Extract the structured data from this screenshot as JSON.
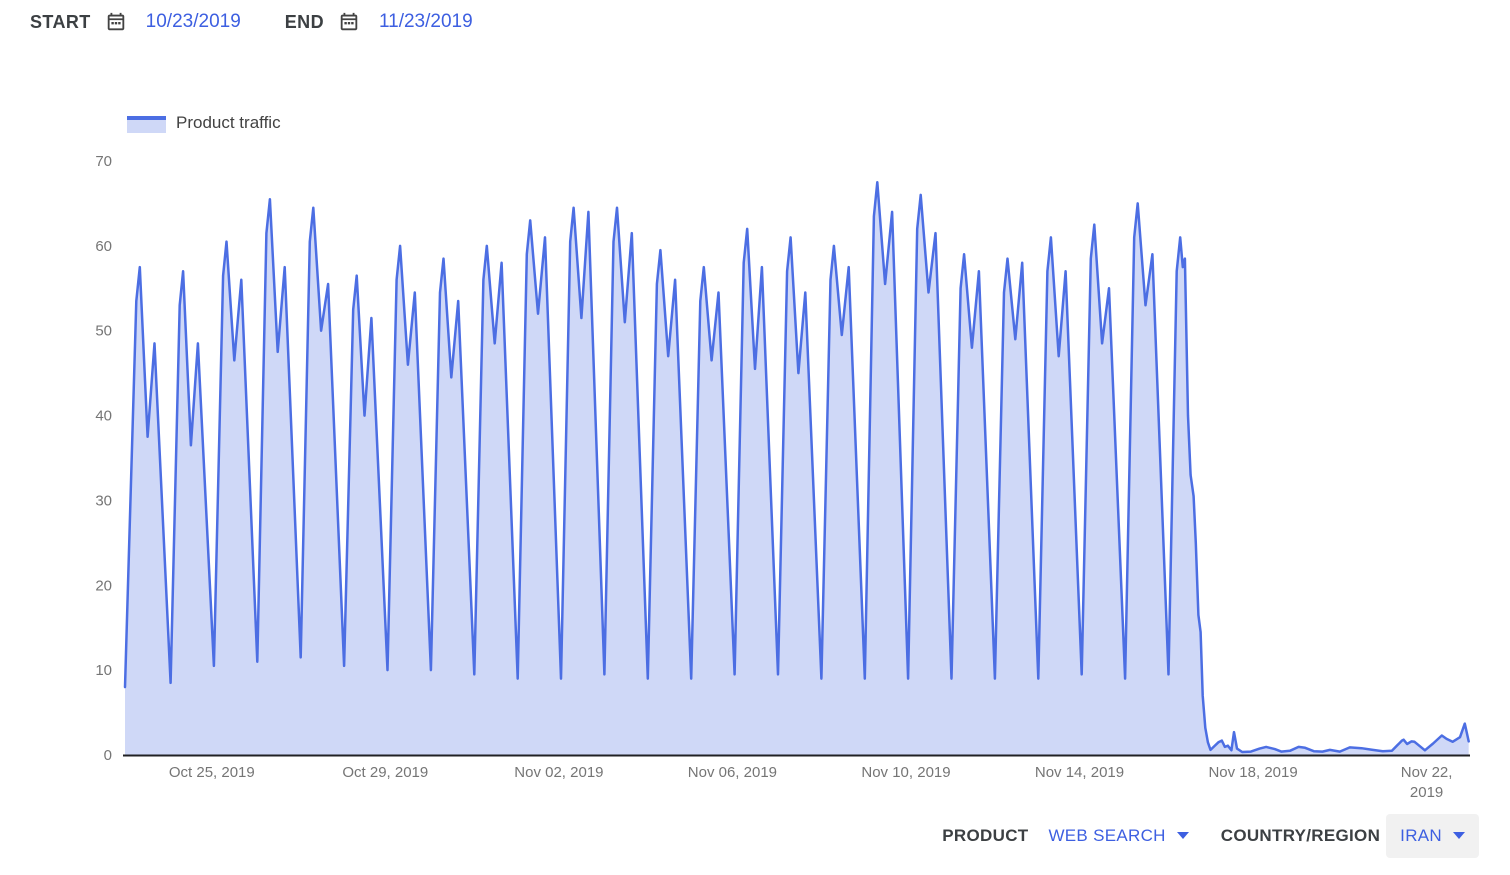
{
  "header": {
    "start_label": "START",
    "start_date": "10/23/2019",
    "end_label": "END",
    "end_date": "11/23/2019"
  },
  "legend": {
    "label": "Product traffic"
  },
  "footer": {
    "product_label": "PRODUCT",
    "product_value": "WEB SEARCH",
    "country_label": "COUNTRY/REGION",
    "country_value": "IRAN"
  },
  "colors": {
    "link": "#3d5fe1",
    "line": "#4c6ee3",
    "fill": "rgba(76,110,227,0.27)",
    "label_dark": "#3c4043",
    "label_gray": "#757575",
    "axis": "#202124",
    "icon_gray": "#424242",
    "select_bg": "#f1f1f1"
  },
  "chart_data": {
    "type": "area",
    "series_name": "Product traffic",
    "title": "",
    "xlabel": "",
    "ylabel": "",
    "x_start": "Oct 23, 2019",
    "x_end": "Nov 23, 2019",
    "x_span_days": 31,
    "ylim": [
      0,
      70
    ],
    "grid": false,
    "legend_position": "top-left",
    "yticks": [
      0,
      10,
      20,
      30,
      40,
      50,
      60,
      70
    ],
    "xticks": [
      {
        "day": 2,
        "label": "Oct 25, 2019"
      },
      {
        "day": 6,
        "label": "Oct 29, 2019"
      },
      {
        "day": 10,
        "label": "Nov 02, 2019"
      },
      {
        "day": 14,
        "label": "Nov 06, 2019"
      },
      {
        "day": 18,
        "label": "Nov 10, 2019"
      },
      {
        "day": 22,
        "label": "Nov 14, 2019"
      },
      {
        "day": 26,
        "label": "Nov 18, 2019"
      },
      {
        "day": 30,
        "label": "Nov 22, 2019",
        "wrap": true
      }
    ],
    "profile": {
      "low": 0.05,
      "shoulder": 0.26,
      "shoulder_drop": 4,
      "peak1": 0.34,
      "dip": 0.52,
      "peak2": 0.68
    },
    "daily": [
      {
        "date": "Oct 23",
        "low": 8,
        "peak1": 57.5,
        "dip": 37.5,
        "peak2": 48.5
      },
      {
        "date": "Oct 24",
        "low": 8.5,
        "peak1": 57,
        "dip": 36.5,
        "peak2": 48.5
      },
      {
        "date": "Oct 25",
        "low": 10.5,
        "peak1": 60.5,
        "dip": 46.5,
        "peak2": 56
      },
      {
        "date": "Oct 26",
        "low": 11,
        "peak1": 65.5,
        "dip": 47.5,
        "peak2": 57.5
      },
      {
        "date": "Oct 27",
        "low": 11.5,
        "peak1": 64.5,
        "dip": 50,
        "peak2": 55.5
      },
      {
        "date": "Oct 28",
        "low": 10.5,
        "peak1": 56.5,
        "dip": 40,
        "peak2": 51.5
      },
      {
        "date": "Oct 29",
        "low": 10,
        "peak1": 60,
        "dip": 46,
        "peak2": 54.5
      },
      {
        "date": "Oct 30",
        "low": 10,
        "peak1": 58.5,
        "dip": 44.5,
        "peak2": 53.5
      },
      {
        "date": "Oct 31",
        "low": 9.5,
        "peak1": 60,
        "dip": 48.5,
        "peak2": 58
      },
      {
        "date": "Nov 01",
        "low": 9,
        "peak1": 63,
        "dip": 52,
        "peak2": 61
      },
      {
        "date": "Nov 02",
        "low": 9,
        "peak1": 64.5,
        "dip": 51.5,
        "peak2": 64
      },
      {
        "date": "Nov 03",
        "low": 9.5,
        "peak1": 64.5,
        "dip": 51,
        "peak2": 61.5
      },
      {
        "date": "Nov 04",
        "low": 9,
        "peak1": 59.5,
        "dip": 47,
        "peak2": 56
      },
      {
        "date": "Nov 05",
        "low": 9,
        "peak1": 57.5,
        "dip": 46.5,
        "peak2": 54.5
      },
      {
        "date": "Nov 06",
        "low": 9.5,
        "peak1": 62,
        "dip": 45.5,
        "peak2": 57.5
      },
      {
        "date": "Nov 07",
        "low": 9.5,
        "peak1": 61,
        "dip": 45,
        "peak2": 54.5
      },
      {
        "date": "Nov 08",
        "low": 9,
        "peak1": 60,
        "dip": 49.5,
        "peak2": 57.5
      },
      {
        "date": "Nov 09",
        "low": 9,
        "peak1": 67.5,
        "dip": 55.5,
        "peak2": 64
      },
      {
        "date": "Nov 10",
        "low": 9,
        "peak1": 66,
        "dip": 54.5,
        "peak2": 61.5
      },
      {
        "date": "Nov 11",
        "low": 9,
        "peak1": 59,
        "dip": 48,
        "peak2": 57
      },
      {
        "date": "Nov 12",
        "low": 9,
        "peak1": 58.5,
        "dip": 49,
        "peak2": 58
      },
      {
        "date": "Nov 13",
        "low": 9,
        "peak1": 61,
        "dip": 47,
        "peak2": 57
      },
      {
        "date": "Nov 14",
        "low": 9.5,
        "peak1": 62.5,
        "dip": 48.5,
        "peak2": 55
      },
      {
        "date": "Nov 15",
        "low": 9,
        "peak1": 65,
        "dip": 53,
        "peak2": 59
      }
    ],
    "nov16_points": [
      [
        24.05,
        9.5
      ],
      [
        24.24,
        57
      ],
      [
        24.32,
        61
      ],
      [
        24.38,
        57.5
      ],
      [
        24.43,
        58.5
      ],
      [
        24.5,
        40
      ],
      [
        24.56,
        33
      ],
      [
        24.63,
        30.5
      ],
      [
        24.68,
        25
      ],
      [
        24.74,
        16.5
      ],
      [
        24.79,
        14.5
      ],
      [
        24.84,
        7
      ],
      [
        24.9,
        3.2
      ],
      [
        24.96,
        1.5
      ]
    ],
    "tail_points": [
      [
        25.02,
        0.6
      ],
      [
        25.1,
        1.0
      ],
      [
        25.2,
        1.5
      ],
      [
        25.28,
        1.7
      ],
      [
        25.35,
        0.95
      ],
      [
        25.42,
        1.1
      ],
      [
        25.5,
        0.55
      ],
      [
        25.56,
        2.7
      ],
      [
        25.63,
        0.75
      ],
      [
        25.75,
        0.35
      ],
      [
        25.95,
        0.4
      ],
      [
        26.15,
        0.75
      ],
      [
        26.3,
        0.95
      ],
      [
        26.5,
        0.7
      ],
      [
        26.65,
        0.4
      ],
      [
        26.85,
        0.5
      ],
      [
        27.05,
        0.95
      ],
      [
        27.2,
        0.85
      ],
      [
        27.4,
        0.45
      ],
      [
        27.6,
        0.4
      ],
      [
        27.77,
        0.6
      ],
      [
        28.0,
        0.4
      ],
      [
        28.23,
        0.9
      ],
      [
        28.5,
        0.8
      ],
      [
        28.76,
        0.6
      ],
      [
        28.99,
        0.45
      ],
      [
        29.2,
        0.5
      ],
      [
        29.43,
        1.7
      ],
      [
        29.47,
        1.8
      ],
      [
        29.55,
        1.3
      ],
      [
        29.65,
        1.6
      ],
      [
        29.72,
        1.55
      ],
      [
        29.96,
        0.55
      ],
      [
        30.15,
        1.35
      ],
      [
        30.35,
        2.3
      ],
      [
        30.46,
        1.9
      ],
      [
        30.6,
        1.55
      ],
      [
        30.77,
        2.1
      ],
      [
        30.88,
        3.7
      ],
      [
        30.97,
        1.6
      ]
    ]
  }
}
